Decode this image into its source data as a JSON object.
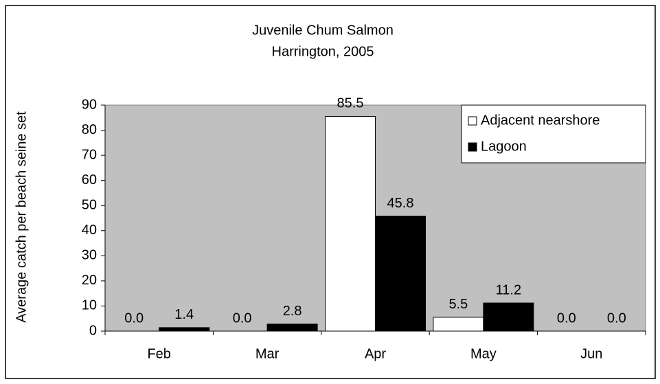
{
  "chart_data": {
    "type": "bar",
    "title": "Juvenile Chum Salmon",
    "subtitle": "Harrington, 2005",
    "y_label": "Average catch per beach seine set",
    "categories": [
      "Feb",
      "Mar",
      "Apr",
      "May",
      "Jun"
    ],
    "series": [
      {
        "name": "Adjacent nearshore",
        "color": "#ffffff",
        "values": [
          0,
          0,
          85.5,
          5.5,
          0
        ],
        "value_labels": [
          "0.0",
          "0.0",
          "85.5",
          "5.5",
          "0.0"
        ]
      },
      {
        "name": "Lagoon",
        "color": "#000000",
        "values": [
          1.4,
          2.8,
          45.8,
          11.2,
          0
        ],
        "value_labels": [
          "1.4",
          "2.8",
          "45.8",
          "11.2",
          "0.0"
        ]
      }
    ],
    "ylim": [
      0,
      90
    ],
    "yticks": [
      0,
      10,
      20,
      30,
      40,
      50,
      60,
      70,
      80,
      90
    ],
    "plot_background": "#c0c0c0",
    "grid": false,
    "legend": "top-right"
  }
}
